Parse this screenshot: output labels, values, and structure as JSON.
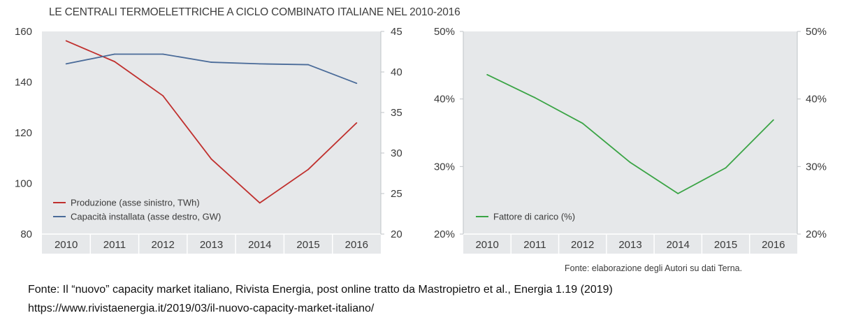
{
  "title": "LE CENTRALI TERMOELETTRICHE A CICLO COMBINATO ITALIANE NEL 2010-2016",
  "source_note": "Fonte: elaborazione degli Autori su dati Terna.",
  "caption": "Fonte: Il “nuovo” capacity market italiano, Rivista Energia, post online tratto da Mastropietro et al., Energia 1.19 (2019)",
  "url": "https://www.rivistaenergia.it/2019/03/il-nuovo-capacity-market-italiano/",
  "colors": {
    "red": "#c0302e",
    "blue": "#4a6b99",
    "green": "#3aa445",
    "panel": "#e6e8ea"
  },
  "chart_data": [
    {
      "type": "line",
      "title": "",
      "x": [
        "2010",
        "2011",
        "2012",
        "2013",
        "2014",
        "2015",
        "2016"
      ],
      "xlabel": "",
      "ylabel": "",
      "ylim_left": [
        80,
        160
      ],
      "yticks_left": [
        80,
        100,
        120,
        140,
        160
      ],
      "ylim_right": [
        20,
        45
      ],
      "yticks_right": [
        20,
        25,
        30,
        35,
        40,
        45
      ],
      "grid": false,
      "legend_position": "bottom-left",
      "series": [
        {
          "name": "Produzione (asse sinistro, TWh)",
          "axis": "left",
          "color": "#c0302e",
          "values": [
            156.3,
            148.1,
            134.6,
            109.6,
            92.3,
            105.5,
            123.9
          ]
        },
        {
          "name": "Capacità installata (asse destro, GW)",
          "axis": "right",
          "color": "#4a6b99",
          "values": [
            41.0,
            42.2,
            42.2,
            41.2,
            41.0,
            40.9,
            38.6
          ]
        }
      ]
    },
    {
      "type": "line",
      "title": "",
      "x": [
        "2010",
        "2011",
        "2012",
        "2013",
        "2014",
        "2015",
        "2016"
      ],
      "xlabel": "",
      "ylabel": "",
      "ylim": [
        20,
        50
      ],
      "yticks": [
        "20%",
        "30%",
        "40%",
        "50%"
      ],
      "grid": false,
      "legend_position": "bottom-left",
      "series": [
        {
          "name": "Fattore di carico (%)",
          "color": "#3aa445",
          "values": [
            43.6,
            40.2,
            36.4,
            30.6,
            26.0,
            29.8,
            36.9
          ]
        }
      ]
    }
  ]
}
